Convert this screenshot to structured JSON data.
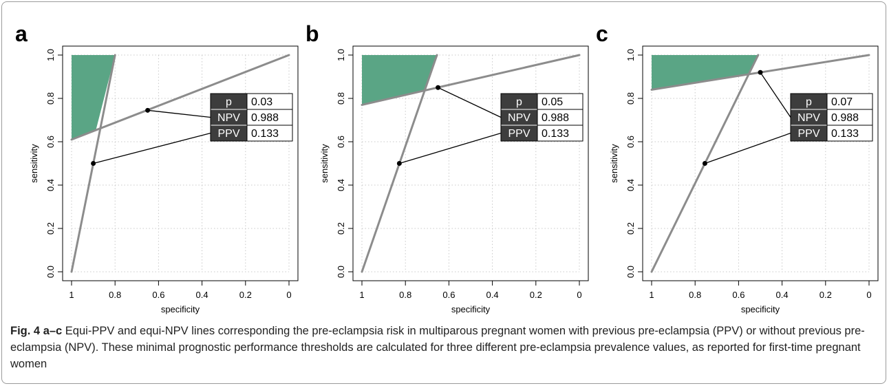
{
  "colors": {
    "shade": "#5aa585",
    "line": "#8c8c8c",
    "grid": "#c8c8c8",
    "box_dark": "#3d3d3d"
  },
  "axis": {
    "xlabel": "specificity",
    "ylabel": "sensitivity"
  },
  "table_labels": [
    "p",
    "NPV",
    "PPV"
  ],
  "chart_data": [
    {
      "type": "line",
      "panel": "a",
      "xlabel": "specificity",
      "ylabel": "sensitivity",
      "x_reversed": true,
      "xlim": [
        1,
        0
      ],
      "ylim": [
        0,
        1
      ],
      "xticks": [
        "1",
        "0.8",
        "0.6",
        "0.4",
        "0.2",
        "0"
      ],
      "yticks": [
        "0.0",
        "0.2",
        "0.4",
        "0.6",
        "0.8",
        "1.0"
      ],
      "grid": true,
      "equi_ppv_line": [
        [
          1,
          0
        ],
        [
          0.8,
          1
        ]
      ],
      "equi_npv_line": [
        [
          1,
          0.61
        ],
        [
          0,
          1
        ]
      ],
      "ppv_point": [
        0.9,
        0.5
      ],
      "npv_point": [
        0.65,
        0.745
      ],
      "shaded_region": [
        [
          1,
          0.61
        ],
        [
          1,
          1
        ],
        [
          0.8,
          1
        ],
        [
          0.888,
          0.654
        ]
      ],
      "table": {
        "p": "0.03",
        "NPV": "0.988",
        "PPV": "0.133"
      }
    },
    {
      "type": "line",
      "panel": "b",
      "xlabel": "specificity",
      "ylabel": "sensitivity",
      "x_reversed": true,
      "xlim": [
        1,
        0
      ],
      "ylim": [
        0,
        1
      ],
      "xticks": [
        "1",
        "0.8",
        "0.6",
        "0.4",
        "0.2",
        "0"
      ],
      "yticks": [
        "0.0",
        "0.2",
        "0.4",
        "0.6",
        "0.8",
        "1.0"
      ],
      "grid": true,
      "equi_ppv_line": [
        [
          1,
          0
        ],
        [
          0.655,
          1
        ]
      ],
      "equi_npv_line": [
        [
          1,
          0.77
        ],
        [
          0,
          1
        ]
      ],
      "ppv_point": [
        0.828,
        0.5
      ],
      "npv_point": [
        0.65,
        0.85
      ],
      "shaded_region": [
        [
          1,
          0.77
        ],
        [
          1,
          1
        ],
        [
          0.655,
          1
        ],
        [
          0.715,
          0.834
        ]
      ],
      "table": {
        "p": "0.05",
        "NPV": "0.988",
        "PPV": "0.133"
      }
    },
    {
      "type": "line",
      "panel": "c",
      "xlabel": "specificity",
      "ylabel": "sensitivity",
      "x_reversed": true,
      "xlim": [
        1,
        0
      ],
      "ylim": [
        0,
        1
      ],
      "xticks": [
        "1",
        "0.8",
        "0.6",
        "0.4",
        "0.2",
        "0"
      ],
      "yticks": [
        "0.0",
        "0.2",
        "0.4",
        "0.6",
        "0.8",
        "1.0"
      ],
      "grid": true,
      "equi_ppv_line": [
        [
          1,
          0
        ],
        [
          0.51,
          1
        ]
      ],
      "equi_npv_line": [
        [
          1,
          0.84
        ],
        [
          0,
          1
        ]
      ],
      "ppv_point": [
        0.755,
        0.5
      ],
      "npv_point": [
        0.5,
        0.92
      ],
      "shaded_region": [
        [
          1,
          0.84
        ],
        [
          1,
          1
        ],
        [
          0.51,
          1
        ],
        [
          0.55,
          0.912
        ]
      ],
      "table": {
        "p": "0.07",
        "NPV": "0.988",
        "PPV": "0.133"
      }
    }
  ],
  "caption": {
    "fig": "Fig. 4",
    "panels": "a–c",
    "text": " Equi-PPV and equi-NPV lines corresponding the pre-eclampsia risk in multiparous pregnant women with previous pre-eclampsia (PPV) or without previous pre-eclampsia (NPV). These minimal prognostic performance thresholds are calculated for three different pre-eclampsia prevalence values, as reported for first-time pregnant women"
  }
}
